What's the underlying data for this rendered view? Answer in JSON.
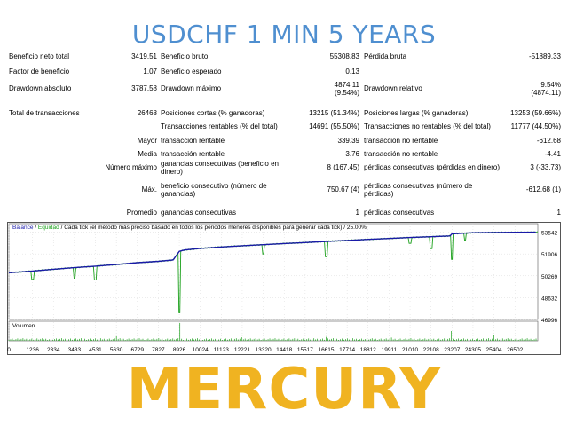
{
  "header": {
    "title": "USDCHF 1 MIN 5 YEARS"
  },
  "stats": {
    "rows": [
      {
        "c1l": "Beneficio neto total",
        "c1v": "3419.51",
        "c2l": "Beneficio bruto",
        "c2v": "55308.83",
        "c3l": "Pérdida bruta",
        "c3v": "-51889.33"
      },
      {
        "c1l": "Factor de beneficio",
        "c1v": "1.07",
        "c2l": "Beneficio esperado",
        "c2v": "0.13",
        "c3l": "",
        "c3v": ""
      },
      {
        "c1l": "Drawdown absoluto",
        "c1v": "3787.58",
        "c2l": "Drawdown máximo",
        "c2v": "4874.11",
        "c2v2": "(9.54%)",
        "c3l": "Drawdown relativo",
        "c3v": "9.54%",
        "c3v2": "(4874.11)"
      },
      {
        "c1l": "Total de transacciones",
        "c1v": "26468",
        "c2l": "Posiciones cortas (% ganadoras)",
        "c2v": "13215 (51.34%)",
        "c3l": "Posiciones largas (% ganadoras)",
        "c3v": "13253 (59.66%)"
      },
      {
        "c1l": "",
        "c1v": "",
        "c2l": "Transacciones rentables (% del total)",
        "c2v": "14691 (55.50%)",
        "c3l": "Transacciones no rentables (% del total)",
        "c3v": "11777 (44.50%)"
      },
      {
        "c1l": "",
        "c1v": "Mayor",
        "c2l": "transacción rentable",
        "c2v": "339.39",
        "c3l": "transacción no rentable",
        "c3v": "-612.68"
      },
      {
        "c1l": "",
        "c1v": "Media",
        "c2l": "transacción rentable",
        "c2v": "3.76",
        "c3l": "transacción no rentable",
        "c3v": "-4.41"
      },
      {
        "c1l": "",
        "c1v": "Número máximo",
        "c2l": "ganancias consecutivas (beneficio en",
        "c2l2": "dinero)",
        "c2v": "8 (167.45)",
        "c3l": "pérdidas consecutivas (pérdidas en dinero)",
        "c3v": "3 (-33.73)"
      },
      {
        "c1l": "",
        "c1v": "Máx.",
        "c2l": "beneficio consecutivo (número de",
        "c2l2": "ganancias)",
        "c2v": "750.67 (4)",
        "c3l": "pérdidas consecutivas (número de",
        "c3l2": "pérdidas)",
        "c3v": "-612.68 (1)"
      },
      {
        "c1l": "",
        "c1v": "Promedio",
        "c2l": "ganancias consecutivas",
        "c2v": "1",
        "c3l": "pérdidas consecutivas",
        "c3v": "1"
      }
    ]
  },
  "chart": {
    "legend": {
      "balance": "Balance",
      "sep1": " / ",
      "equity": "Equidad",
      "sep2": " / ",
      "rest": "Cada tick (el método más preciso basado en todos los periodos menores disponibles para generar cada tick)  /  25.00%"
    },
    "volume_label": "Volumen",
    "colors": {
      "balance": "#1a1aa8",
      "equity": "#1aa01a",
      "grid": "#d9d9d9",
      "border": "#555555"
    }
  },
  "chart_data": {
    "type": "line",
    "title": "",
    "xlabel": "",
    "ylabel": "",
    "x_ticks": [
      "0",
      "1236",
      "2334",
      "3433",
      "4531",
      "5630",
      "6729",
      "7827",
      "8926",
      "10024",
      "11123",
      "12221",
      "13320",
      "14418",
      "15517",
      "16615",
      "17714",
      "18812",
      "19911",
      "21010",
      "22108",
      "23207",
      "24305",
      "25404",
      "26502"
    ],
    "y_ticks": [
      "53542",
      "51906",
      "50269",
      "48632",
      "46996"
    ],
    "ylim": [
      46996,
      54178
    ],
    "xlim": [
      0,
      27700
    ],
    "series": [
      {
        "values_x": [
          0,
          1236,
          2334,
          3433,
          4531,
          5630,
          6729,
          7827,
          8600,
          8926,
          9200,
          10024,
          11123,
          12221,
          13320,
          14418,
          15517,
          16615,
          17714,
          18812,
          19911,
          21010,
          22108,
          23100,
          23207,
          24305,
          25404,
          26502,
          27600
        ],
        "values_y": [
          50500,
          50630,
          50760,
          50880,
          50990,
          51110,
          51250,
          51350,
          51450,
          52100,
          52200,
          52320,
          52430,
          52520,
          52600,
          52690,
          52760,
          52850,
          52920,
          53000,
          53070,
          53140,
          53200,
          53260,
          53420,
          53500,
          53520,
          53530,
          53542
        ]
      }
    ],
    "equity_dips": [
      [
        1236,
        50000
      ],
      [
        3433,
        50080
      ],
      [
        4531,
        49950
      ],
      [
        8926,
        47500
      ],
      [
        13320,
        51900
      ],
      [
        16615,
        51700
      ],
      [
        21010,
        52700
      ],
      [
        22108,
        52300
      ],
      [
        23207,
        51500
      ],
      [
        23900,
        52900
      ]
    ],
    "volume_spikes": [
      [
        8926,
        1.0
      ],
      [
        23207,
        0.55
      ],
      [
        5630,
        0.25
      ],
      [
        12221,
        0.2
      ],
      [
        16615,
        0.22
      ],
      [
        20000,
        0.18
      ],
      [
        25404,
        0.3
      ]
    ]
  }
}
